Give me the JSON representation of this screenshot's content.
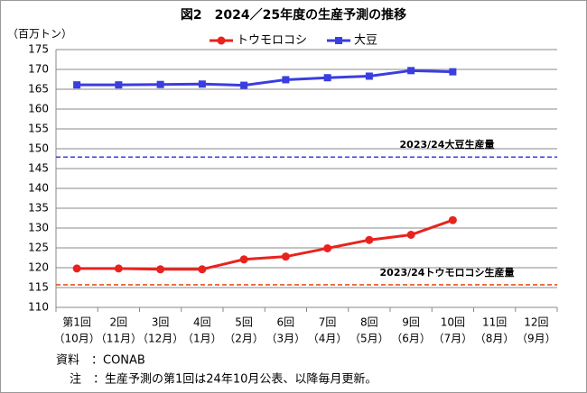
{
  "chart_data": {
    "type": "line",
    "title": "図2　2024／25年度の生産予測の推移",
    "y_label": "（百万トン）",
    "categories": [
      "第1回",
      "2回",
      "3回",
      "4回",
      "5回",
      "6回",
      "7回",
      "8回",
      "9回",
      "10回",
      "11回",
      "12回"
    ],
    "category_months": [
      "（10月）",
      "（11月）",
      "（12月）",
      "（1月）",
      "（2月）",
      "（3月）",
      "（4月）",
      "（5月）",
      "（6月）",
      "（7月）",
      "（8月）",
      "（9月）"
    ],
    "series": [
      {
        "name": "トウモロコシ",
        "color": "#e8231e",
        "marker": "circle",
        "values": [
          119.8,
          119.8,
          119.6,
          119.6,
          122.1,
          122.8,
          124.9,
          127.0,
          128.3,
          132.0,
          null,
          null
        ]
      },
      {
        "name": "大豆",
        "color": "#3a3ee0",
        "marker": "square",
        "values": [
          166.1,
          166.1,
          166.2,
          166.3,
          166.0,
          167.4,
          167.9,
          168.3,
          169.7,
          169.4,
          null,
          null
        ]
      }
    ],
    "reference_lines": [
      {
        "label": "2023/24大豆生産量",
        "value": 147.9,
        "color": "#3a3ee0"
      },
      {
        "label": "2023/24トウモロコシ生産量",
        "value": 115.7,
        "color": "#e8531e"
      }
    ],
    "ylim": [
      110,
      175
    ],
    "yticks": [
      110,
      115,
      120,
      125,
      130,
      135,
      140,
      145,
      150,
      155,
      160,
      165,
      170,
      175
    ],
    "grid": true,
    "notes": [
      "資料　：CONAB",
      "注　：生産予測の第1回は24年10月公表、以降毎月更新。"
    ]
  }
}
